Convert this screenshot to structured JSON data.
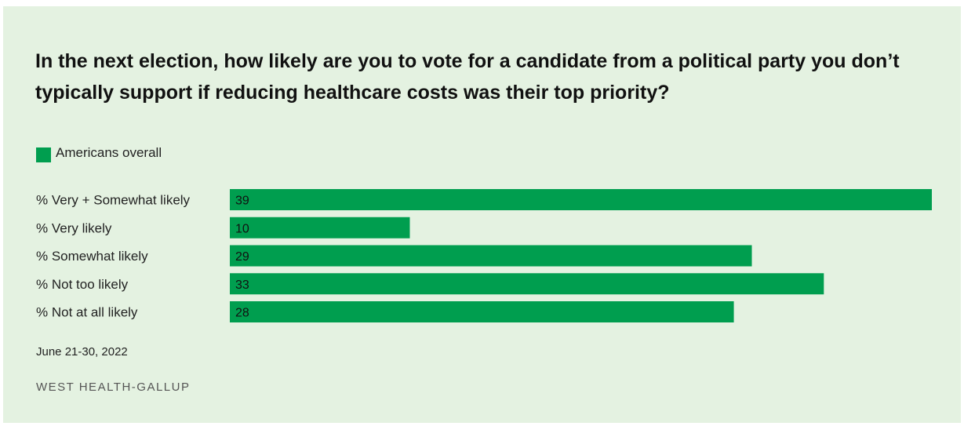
{
  "title": "In the next election, how likely are you to vote for a candidate from a political party you don’t typically support if reducing healthcare costs was their top priority?",
  "legend": "Americans overall",
  "date": "June 21-30, 2022",
  "source": "WEST HEALTH-GALLUP",
  "colors": {
    "background": "#e4f2e1",
    "bar": "#009e4f"
  },
  "chart_data": {
    "type": "bar",
    "orientation": "horizontal",
    "title": "In the next election, how likely are you to vote for a candidate from a political party you don’t typically support if reducing healthcare costs was their top priority?",
    "categories": [
      "% Very + Somewhat likely",
      "% Very likely",
      "% Somewhat likely",
      "% Not too likely",
      "% Not at all likely"
    ],
    "series": [
      {
        "name": "Americans overall",
        "values": [
          39,
          10,
          29,
          33,
          28
        ]
      }
    ],
    "xlim": [
      0,
      39
    ],
    "grid": false,
    "legend_position": "top-left",
    "data_labels": true
  }
}
